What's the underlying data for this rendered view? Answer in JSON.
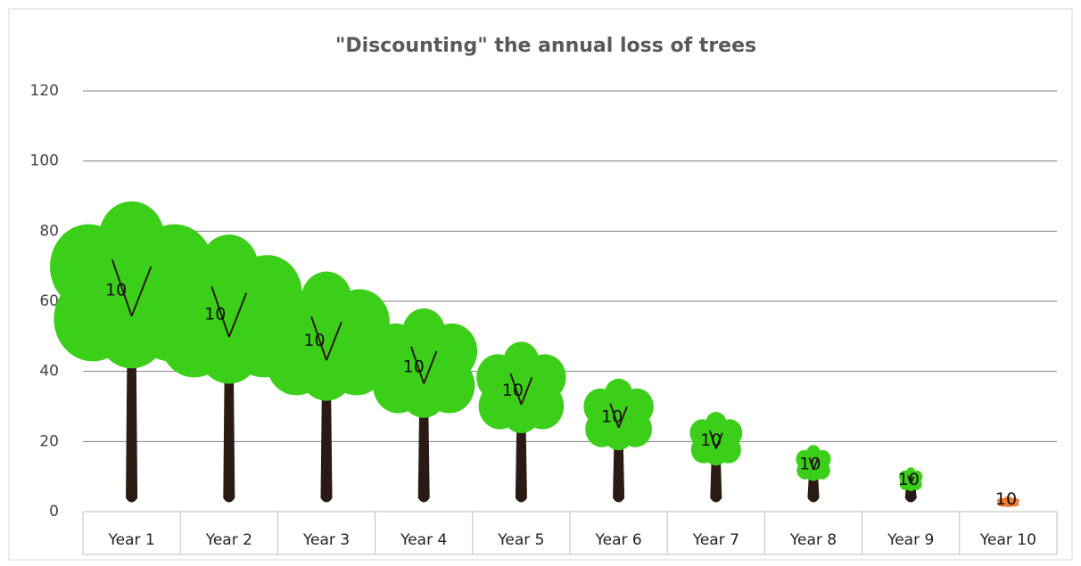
{
  "chart_data": {
    "type": "pictograph",
    "title": "\"Discounting\" the annual loss of trees",
    "categories": [
      "Year 1",
      "Year 2",
      "Year 3",
      "Year 4",
      "Year 5",
      "Year 6",
      "Year 7",
      "Year 8",
      "Year 9",
      "Year 10"
    ],
    "values": [
      84,
      75,
      65,
      55,
      46,
      36,
      27,
      18,
      12,
      4
    ],
    "data_labels": [
      "10",
      "10",
      "10",
      "10",
      "10",
      "10",
      "10",
      "10",
      "10",
      "10"
    ],
    "colors": [
      "#3ccf1a",
      "#3ccf1a",
      "#3ccf1a",
      "#3ccf1a",
      "#3ccf1a",
      "#3ccf1a",
      "#3ccf1a",
      "#3ccf1a",
      "#3ccf1a",
      "#ed7d31"
    ],
    "ylim": [
      0,
      120
    ],
    "yticks": [
      0,
      20,
      40,
      60,
      80,
      100,
      120
    ],
    "grid": true
  }
}
